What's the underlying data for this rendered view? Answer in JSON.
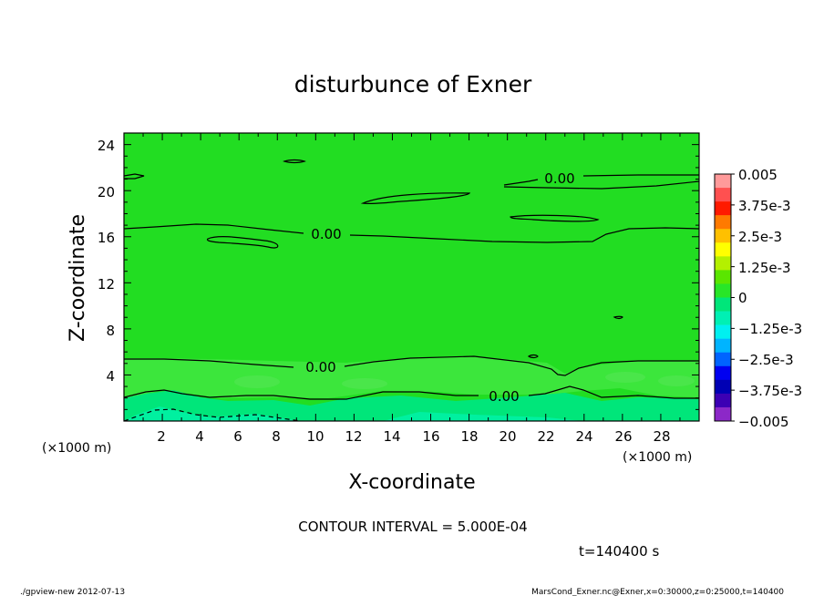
{
  "chart_data": {
    "type": "contour",
    "title": "disturbunce of Exner",
    "xlabel": "X-coordinate",
    "ylabel": "Z-coordinate",
    "x_unit": "(×1000 m)",
    "y_unit": "(×1000 m)",
    "xlim": [
      0,
      30
    ],
    "ylim": [
      0,
      25
    ],
    "x_ticks": [
      2,
      4,
      6,
      8,
      10,
      12,
      14,
      16,
      18,
      20,
      22,
      24,
      26,
      28
    ],
    "y_ticks": [
      4,
      8,
      12,
      16,
      20,
      24
    ],
    "contour_interval_text": "CONTOUR INTERVAL = 5.000E-04",
    "time_text": "t=140400 s",
    "contour_labels": [
      {
        "text": "0.00",
        "x": 10.0,
        "z": 16.0
      },
      {
        "text": "0.00",
        "x": 10.0,
        "z": 4.5
      },
      {
        "text": "0.00",
        "x": 22.5,
        "z": 20.6
      },
      {
        "text": "0.00",
        "x": 20.0,
        "z": 2.0
      }
    ],
    "colorbar": {
      "labels": [
        "0.005",
        "3.75e-3",
        "2.5e-3",
        "1.25e-3",
        "0",
        "−1.25e-3",
        "−2.5e-3",
        "−3.75e-3",
        "−0.005"
      ],
      "colors": [
        "#ff9a9a",
        "#ff5050",
        "#ff1a00",
        "#ff7a00",
        "#ffc000",
        "#ffff00",
        "#b4f000",
        "#5ae600",
        "#28e628",
        "#00e67a",
        "#00f0b4",
        "#00f0f0",
        "#00b4ff",
        "#0064ff",
        "#0000f0",
        "#0000b4",
        "#3c00b4",
        "#8c28c8"
      ]
    }
  },
  "footer": {
    "left": "./gpview-new   2012-07-13",
    "right": "MarsCond_Exner.nc@Exner,x=0:30000,z=0:25000,t=140400"
  }
}
